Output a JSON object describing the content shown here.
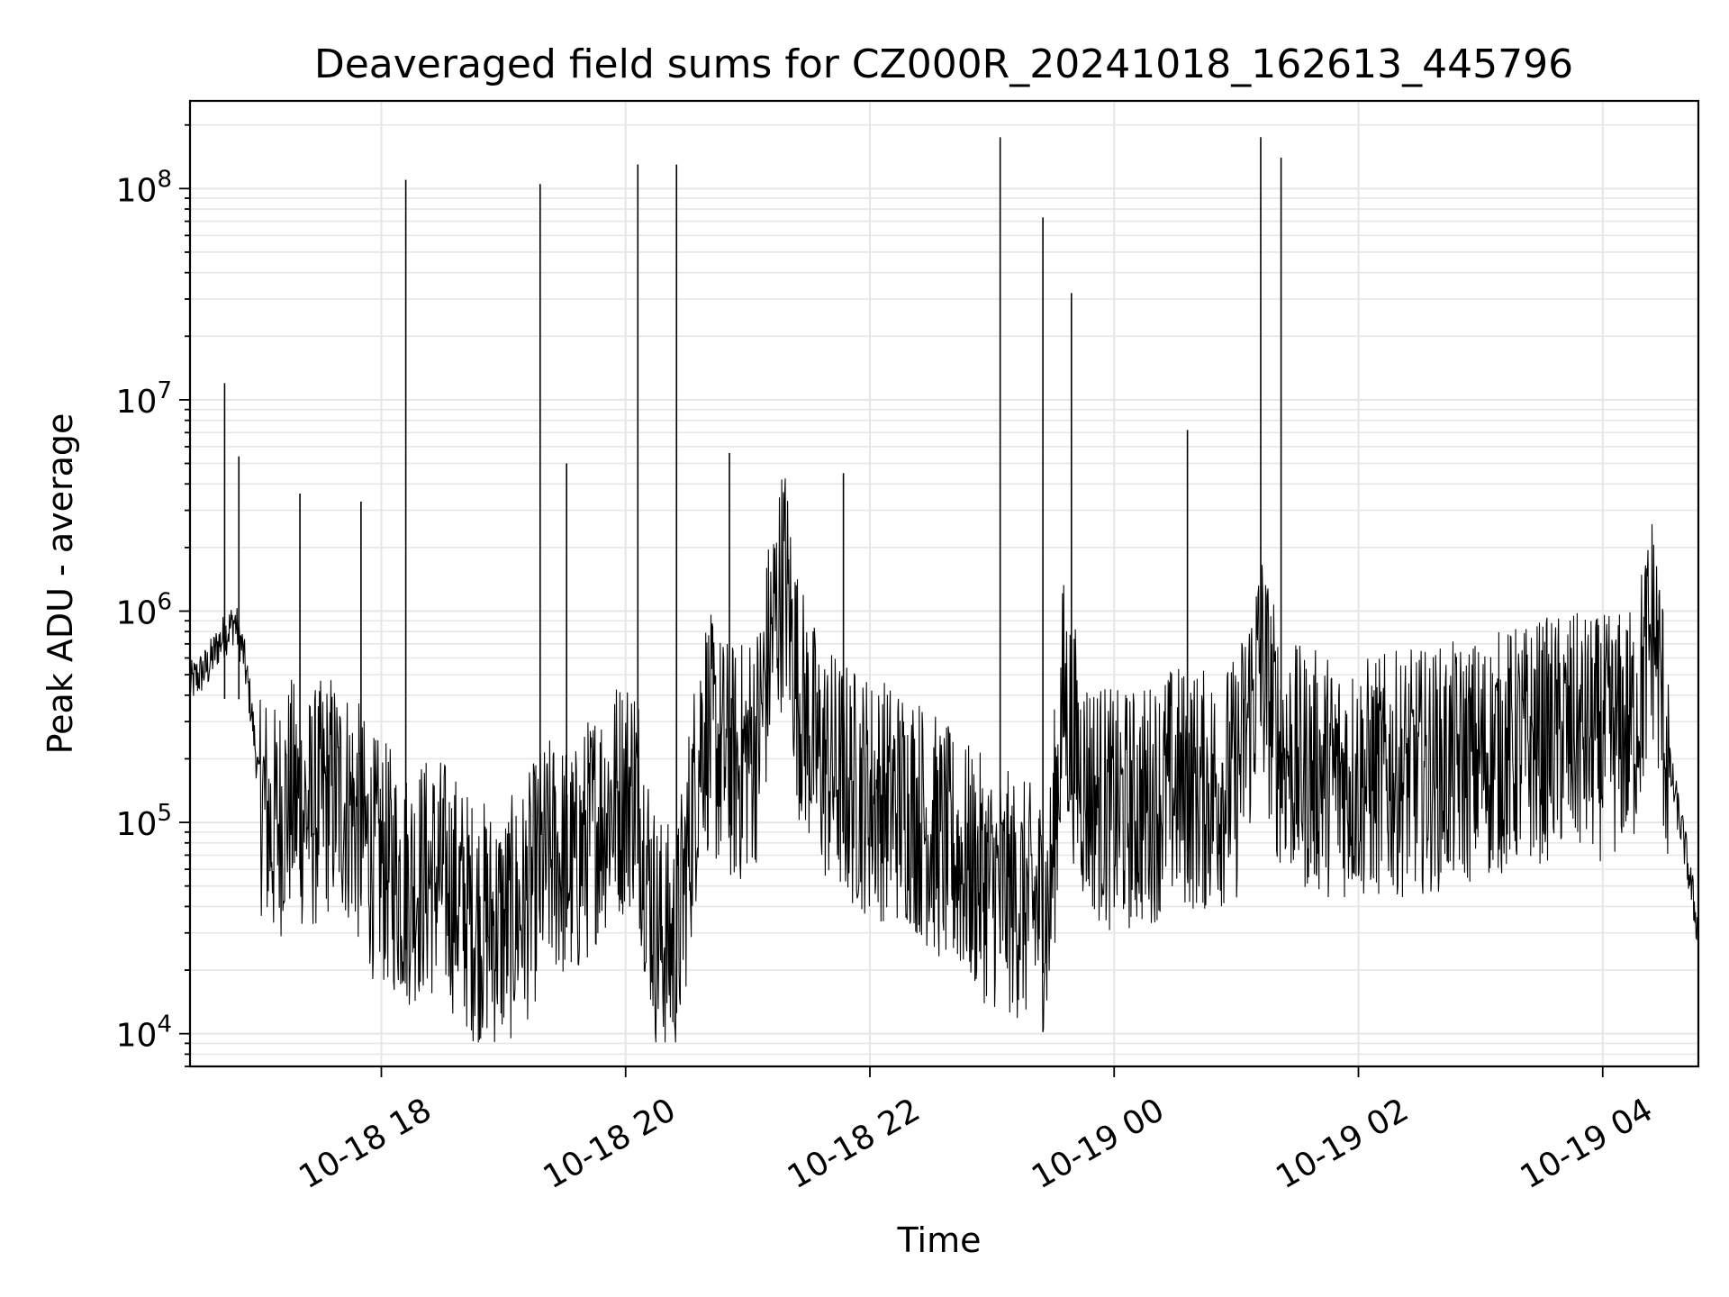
{
  "chart_data": {
    "type": "line",
    "title": "Deaveraged field sums for CZ000R_20241018_162613_445796",
    "xlabel": "Time",
    "ylabel": "Peak ADU - average",
    "yscale": "log",
    "ylim": [
      7000,
      260000000
    ],
    "xlim": [
      "10-18 16:26",
      "10-19 04:47"
    ],
    "x_ticks": [
      "10-18 18",
      "10-18 20",
      "10-18 22",
      "10-19 00",
      "10-19 02",
      "10-19 04"
    ],
    "y_ticks": [
      {
        "base": "10",
        "exp": "4",
        "value": 10000
      },
      {
        "base": "10",
        "exp": "5",
        "value": 100000
      },
      {
        "base": "10",
        "exp": "6",
        "value": 1000000
      },
      {
        "base": "10",
        "exp": "7",
        "value": 10000000
      },
      {
        "base": "10",
        "exp": "8",
        "value": 100000000
      }
    ],
    "grid": true,
    "line_color": "#000000",
    "grid_color": "#e6e6e6",
    "series": [
      {
        "x": [
          "10-18 16:26",
          "10-18 16:35",
          "10-18 16:40",
          "10-18 16:48",
          "10-18 16:52",
          "10-18 16:56",
          "10-18 17:00",
          "10-18 17:06",
          "10-18 17:15",
          "10-18 17:25",
          "10-18 17:35",
          "10-18 17:45",
          "10-18 17:55",
          "10-18 18:05",
          "10-18 18:12",
          "10-18 18:20",
          "10-18 18:30",
          "10-18 18:45",
          "10-18 19:00",
          "10-18 19:10",
          "10-18 19:18",
          "10-18 19:25",
          "10-18 19:35",
          "10-18 19:45",
          "10-18 19:55",
          "10-18 20:05",
          "10-18 20:15",
          "10-18 20:25",
          "10-18 20:38",
          "10-18 20:45",
          "10-18 20:55",
          "10-18 21:05",
          "10-18 21:12",
          "10-18 21:18",
          "10-18 21:25",
          "10-18 21:35",
          "10-18 21:50",
          "10-18 22:05",
          "10-18 22:20",
          "10-18 22:35",
          "10-18 22:50",
          "10-18 23:00",
          "10-18 23:10",
          "10-18 23:20",
          "10-18 23:28",
          "10-18 23:35",
          "10-18 23:45",
          "10-19 00:00",
          "10-19 00:15",
          "10-19 00:30",
          "10-19 00:45",
          "10-19 01:00",
          "10-19 01:12",
          "10-19 01:20",
          "10-19 01:30",
          "10-19 01:45",
          "10-19 02:00",
          "10-19 02:20",
          "10-19 02:40",
          "10-19 03:00",
          "10-19 03:20",
          "10-19 03:40",
          "10-19 04:00",
          "10-19 04:15",
          "10-19 04:25",
          "10-19 04:32",
          "10-19 04:40",
          "10-19 04:47"
        ],
        "y": [
          450000,
          550000,
          700000,
          900000,
          650000,
          350000,
          150000,
          90000,
          130000,
          110000,
          140000,
          120000,
          70000,
          60000,
          50000,
          55000,
          55000,
          35000,
          32000,
          40000,
          60000,
          70000,
          60000,
          100000,
          130000,
          150000,
          30000,
          25000,
          300000,
          220000,
          180000,
          250000,
          800000,
          1500000,
          400000,
          200000,
          150000,
          130000,
          120000,
          80000,
          60000,
          50000,
          45000,
          40000,
          38000,
          400000,
          150000,
          110000,
          120000,
          150000,
          140000,
          160000,
          600000,
          250000,
          180000,
          170000,
          160000,
          170000,
          180000,
          200000,
          230000,
          260000,
          250000,
          280000,
          900000,
          200000,
          80000,
          30000
        ]
      }
    ],
    "spikes": [
      {
        "x": "10-18 16:43",
        "y": 12000000
      },
      {
        "x": "10-18 16:50",
        "y": 5400000
      },
      {
        "x": "10-18 17:20",
        "y": 3600000
      },
      {
        "x": "10-18 17:50",
        "y": 3300000
      },
      {
        "x": "10-18 18:12",
        "y": 110000000
      },
      {
        "x": "10-18 19:18",
        "y": 105000000
      },
      {
        "x": "10-18 19:31",
        "y": 5000000
      },
      {
        "x": "10-18 20:06",
        "y": 130000000
      },
      {
        "x": "10-18 20:25",
        "y": 130000000
      },
      {
        "x": "10-18 20:51",
        "y": 5600000
      },
      {
        "x": "10-18 21:47",
        "y": 4500000
      },
      {
        "x": "10-18 23:04",
        "y": 175000000
      },
      {
        "x": "10-18 23:25",
        "y": 73000000
      },
      {
        "x": "10-18 23:39",
        "y": 32000000
      },
      {
        "x": "10-19 00:36",
        "y": 7200000
      },
      {
        "x": "10-19 01:12",
        "y": 175000000
      },
      {
        "x": "10-19 01:22",
        "y": 140000000
      }
    ]
  }
}
